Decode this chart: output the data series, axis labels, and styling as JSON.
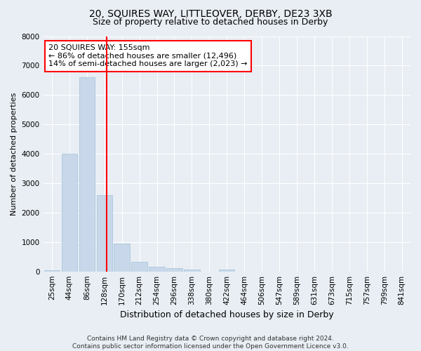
{
  "title": "20, SQUIRES WAY, LITTLEOVER, DERBY, DE23 3XB",
  "subtitle": "Size of property relative to detached houses in Derby",
  "xlabel": "Distribution of detached houses by size in Derby",
  "ylabel": "Number of detached properties",
  "bin_labels": [
    "25sqm",
    "44sqm",
    "86sqm",
    "128sqm",
    "170sqm",
    "212sqm",
    "254sqm",
    "296sqm",
    "338sqm",
    "380sqm",
    "422sqm",
    "464sqm",
    "506sqm",
    "547sqm",
    "589sqm",
    "631sqm",
    "673sqm",
    "715sqm",
    "757sqm",
    "799sqm",
    "841sqm"
  ],
  "bar_heights": [
    50,
    4000,
    6600,
    2600,
    950,
    320,
    150,
    100,
    60,
    0,
    60,
    0,
    0,
    0,
    0,
    0,
    0,
    0,
    0,
    0,
    0
  ],
  "bar_color": "#c8d8ea",
  "bar_edge_color": "#a0c0d8",
  "annotation_line1": "20 SQUIRES WAY: 155sqm",
  "annotation_line2": "← 86% of detached houses are smaller (12,496)",
  "annotation_line3": "14% of semi-detached houses are larger (2,023) →",
  "ylim": [
    0,
    8000
  ],
  "yticks": [
    0,
    1000,
    2000,
    3000,
    4000,
    5000,
    6000,
    7000,
    8000
  ],
  "red_line_x": 3.14,
  "footer_line1": "Contains HM Land Registry data © Crown copyright and database right 2024.",
  "footer_line2": "Contains public sector information licensed under the Open Government Licence v3.0.",
  "bg_color": "#e8eef4",
  "grid_color": "#ffffff",
  "title_fontsize": 10,
  "subtitle_fontsize": 9,
  "axis_label_fontsize": 9,
  "ylabel_fontsize": 8,
  "tick_fontsize": 7.5,
  "footer_fontsize": 6.5,
  "annotation_fontsize": 8
}
